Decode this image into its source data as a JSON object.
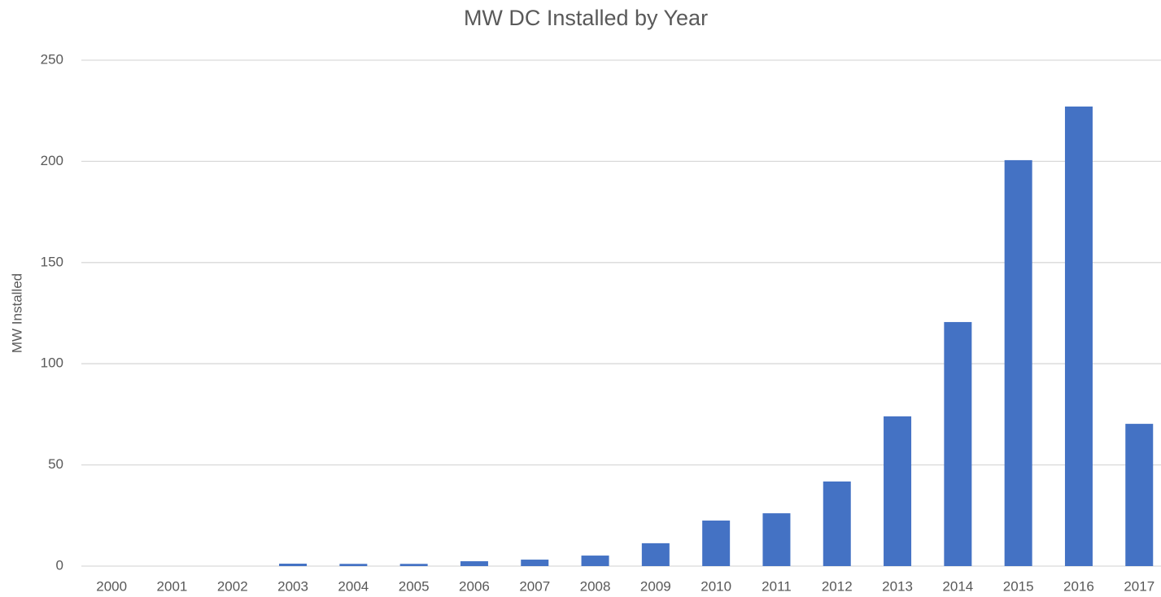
{
  "chart_data": {
    "type": "bar",
    "title": "MW DC Installed by Year",
    "y_label": "MW Installed",
    "categories": [
      "2000",
      "2001",
      "2002",
      "2003",
      "2004",
      "2005",
      "2006",
      "2007",
      "2008",
      "2009",
      "2010",
      "2011",
      "2012",
      "2013",
      "2014",
      "2015",
      "2016",
      "2017"
    ],
    "values": [
      0,
      0,
      0,
      1.2,
      1.1,
      1.1,
      2.4,
      3.2,
      5.2,
      11.3,
      22.5,
      26.1,
      41.8,
      74,
      120.6,
      200.6,
      227.1,
      70.3
    ],
    "color": "#4472c4",
    "ylim": [
      0,
      250
    ],
    "yticks": [
      0,
      50,
      100,
      150,
      200,
      250
    ],
    "grid": true
  }
}
